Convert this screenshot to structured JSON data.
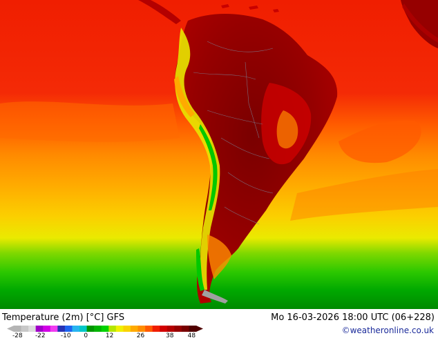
{
  "map": {
    "title": "Temperature (2m) [°C] GFS",
    "datetime": "Mo 16-03-2026 18:00 UTC (06+228)",
    "credit": "©weatheronline.co.uk"
  },
  "legend": {
    "colors": [
      "#b4b4b4",
      "#c8c8c8",
      "#dcdcdc",
      "#a000c8",
      "#d200e6",
      "#f03cf0",
      "#2832b4",
      "#1e64f0",
      "#28b4f0",
      "#00c8c8",
      "#009600",
      "#00b400",
      "#00d200",
      "#b4e600",
      "#f0f000",
      "#fad200",
      "#ffaa00",
      "#ff8c00",
      "#ff5a00",
      "#f01e00",
      "#d20000",
      "#b40000",
      "#960000",
      "#780000",
      "#500000"
    ],
    "ticks": [
      {
        "label": "-28",
        "pos": 0.02
      },
      {
        "label": "-22",
        "pos": 0.145
      },
      {
        "label": "-10",
        "pos": 0.285
      },
      {
        "label": "0",
        "pos": 0.395
      },
      {
        "label": "12",
        "pos": 0.525
      },
      {
        "label": "26",
        "pos": 0.695
      },
      {
        "label": "38",
        "pos": 0.855
      },
      {
        "label": "48",
        "pos": 0.975
      }
    ]
  }
}
